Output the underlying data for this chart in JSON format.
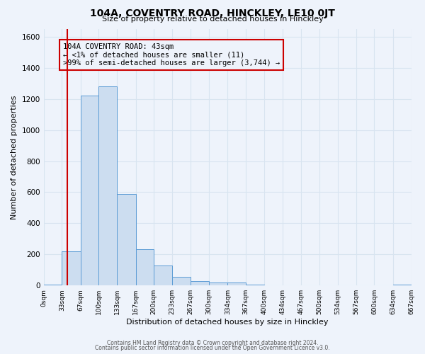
{
  "title": "104A, COVENTRY ROAD, HINCKLEY, LE10 0JT",
  "subtitle": "Size of property relative to detached houses in Hinckley",
  "xlabel": "Distribution of detached houses by size in Hinckley",
  "ylabel": "Number of detached properties",
  "bin_edges": [
    0,
    33,
    67,
    100,
    133,
    167,
    200,
    233,
    267,
    300,
    334,
    367,
    400,
    434,
    467,
    500,
    534,
    567,
    600,
    634,
    667
  ],
  "bin_counts": [
    5,
    220,
    1220,
    1280,
    590,
    235,
    130,
    55,
    30,
    20,
    20,
    5,
    0,
    0,
    0,
    0,
    0,
    0,
    0,
    5
  ],
  "bar_facecolor": "#ccddf0",
  "bar_edgecolor": "#5b9bd5",
  "vline_x": 43,
  "vline_color": "#cc0000",
  "ylim": [
    0,
    1650
  ],
  "yticks": [
    0,
    200,
    400,
    600,
    800,
    1000,
    1200,
    1400,
    1600
  ],
  "annotation_text": "104A COVENTRY ROAD: 43sqm\n← <1% of detached houses are smaller (11)\n>99% of semi-detached houses are larger (3,744) →",
  "bg_color": "#eef3fb",
  "footer1": "Contains HM Land Registry data © Crown copyright and database right 2024.",
  "footer2": "Contains public sector information licensed under the Open Government Licence v3.0.",
  "grid_color": "#d8e4f0",
  "tick_labels": [
    "0sqm",
    "33sqm",
    "67sqm",
    "100sqm",
    "133sqm",
    "167sqm",
    "200sqm",
    "233sqm",
    "267sqm",
    "300sqm",
    "334sqm",
    "367sqm",
    "400sqm",
    "434sqm",
    "467sqm",
    "500sqm",
    "534sqm",
    "567sqm",
    "600sqm",
    "634sqm",
    "667sqm"
  ]
}
